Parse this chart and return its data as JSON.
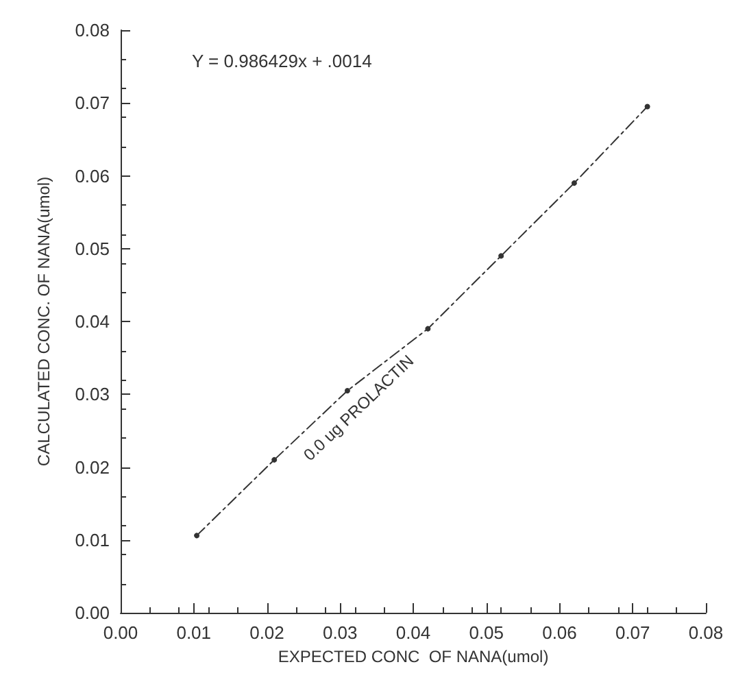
{
  "chart_data": {
    "type": "line",
    "xlabel": "EXPECTED CONC  OF NANA(umol)",
    "ylabel": "CALCULATED CONC. OF NANA(umol)",
    "annotations": [
      "Y = 0.986429x + .0014",
      "0.0 ug PROLACTIN"
    ],
    "x": [
      0.0104,
      0.021,
      0.031,
      0.042,
      0.052,
      0.062,
      0.072
    ],
    "series": [
      {
        "color": "#333333",
        "values": [
          0.0106,
          0.021,
          0.0305,
          0.039,
          0.049,
          0.059,
          0.0695
        ]
      }
    ],
    "xlim": [
      0,
      0.08
    ],
    "ylim": [
      0,
      0.08
    ],
    "xticks": [
      {
        "value": 0,
        "label": "0.00"
      },
      {
        "value": 0.01,
        "label": "0.01"
      },
      {
        "value": 0.02,
        "label": "0.02"
      },
      {
        "value": 0.03,
        "label": "0.03"
      },
      {
        "value": 0.04,
        "label": "0.04"
      },
      {
        "value": 0.05,
        "label": "0.05"
      },
      {
        "value": 0.06,
        "label": "0.06"
      },
      {
        "value": 0.07,
        "label": "0.07"
      },
      {
        "value": 0.08,
        "label": "0.08"
      }
    ],
    "yticks": [
      {
        "value": 0,
        "label": "0.00"
      },
      {
        "value": 0.01,
        "label": "0.01"
      },
      {
        "value": 0.02,
        "label": "0.02"
      },
      {
        "value": 0.03,
        "label": "0.03"
      },
      {
        "value": 0.04,
        "label": "0.04"
      },
      {
        "value": 0.05,
        "label": "0.05"
      },
      {
        "value": 0.06,
        "label": "0.06"
      },
      {
        "value": 0.07,
        "label": "0.07"
      },
      {
        "value": 0.08,
        "label": "0.08"
      }
    ],
    "grid": false,
    "marker": "circle",
    "line_style": "dashed"
  }
}
